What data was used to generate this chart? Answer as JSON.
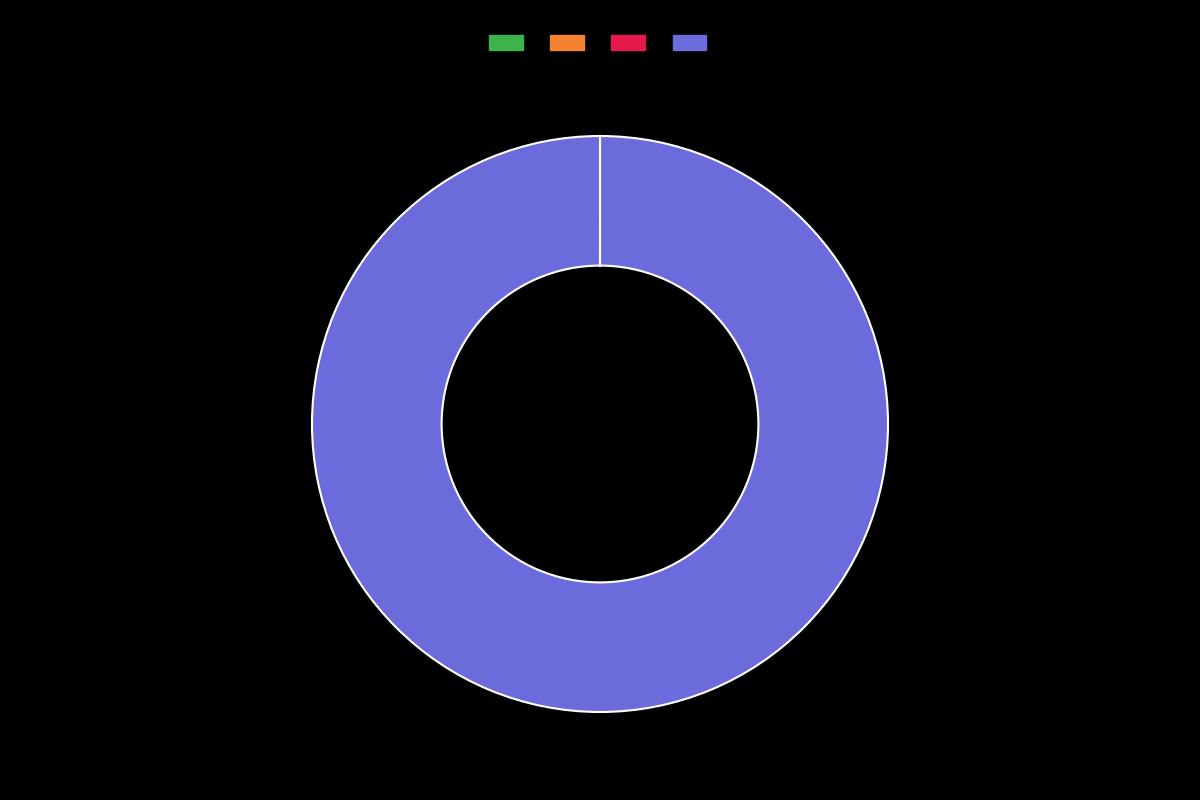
{
  "values": [
    0.001,
    0.001,
    0.001,
    99.997
  ],
  "colors": [
    "#3cb44b",
    "#f58231",
    "#e6194b",
    "#6b6bdb"
  ],
  "legend_labels": [
    "",
    "",
    "",
    ""
  ],
  "background_color": "#000000",
  "wedge_edge_color": "#ffffff",
  "wedge_edge_width": 1.5,
  "donut_width": 0.45,
  "startangle": 90,
  "figsize": [
    12.0,
    8.0
  ],
  "dpi": 100
}
